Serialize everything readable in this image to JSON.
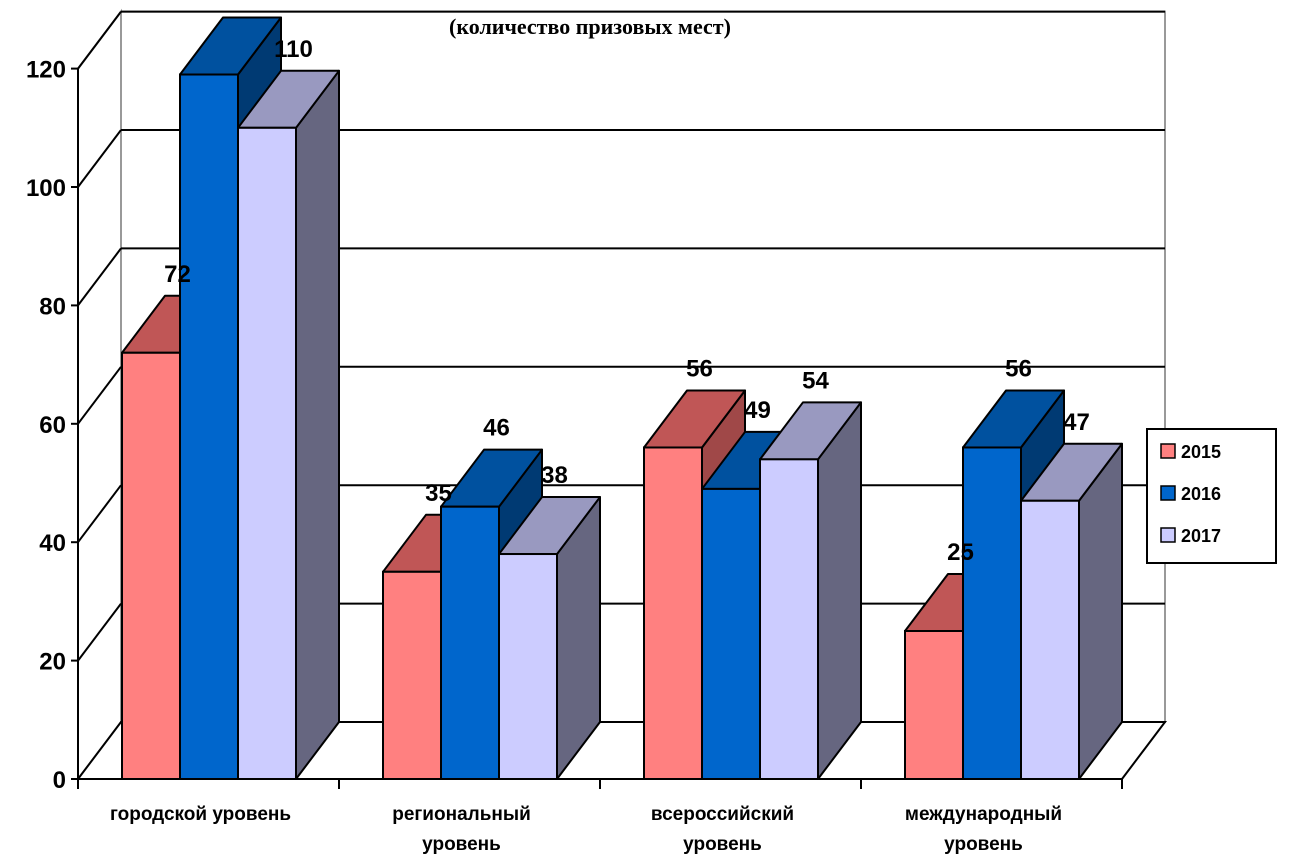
{
  "chart_data": {
    "type": "bar",
    "title_line1": "",
    "title_line2": "(количество призовых мест)",
    "categories": [
      [
        "городской уровень"
      ],
      [
        "региональный",
        "уровень"
      ],
      [
        "всероссийский",
        "уровень"
      ],
      [
        "международный",
        "уровень"
      ]
    ],
    "series": [
      {
        "name": "2015",
        "values": [
          72,
          35,
          56,
          25
        ],
        "colors": {
          "front": "#ff8080",
          "top": "#c05656",
          "side": "#a04848"
        }
      },
      {
        "name": "2016",
        "values": [
          119,
          46,
          49,
          56
        ],
        "colors": {
          "front": "#0066cc",
          "top": "#00519f",
          "side": "#003a73"
        }
      },
      {
        "name": "2017",
        "values": [
          110,
          38,
          54,
          47
        ],
        "colors": {
          "front": "#ccccff",
          "top": "#9999c0",
          "side": "#666680"
        }
      }
    ],
    "data_labels": [
      [
        "72",
        "35",
        "56",
        "25"
      ],
      [
        "",
        "46",
        "49",
        "56"
      ],
      [
        "110",
        "38",
        "54",
        "47"
      ]
    ],
    "yticks": [
      "0",
      "20",
      "40",
      "60",
      "80",
      "100",
      "120"
    ],
    "ylim": [
      0,
      120
    ],
    "grid": true,
    "legend_position": "right"
  }
}
